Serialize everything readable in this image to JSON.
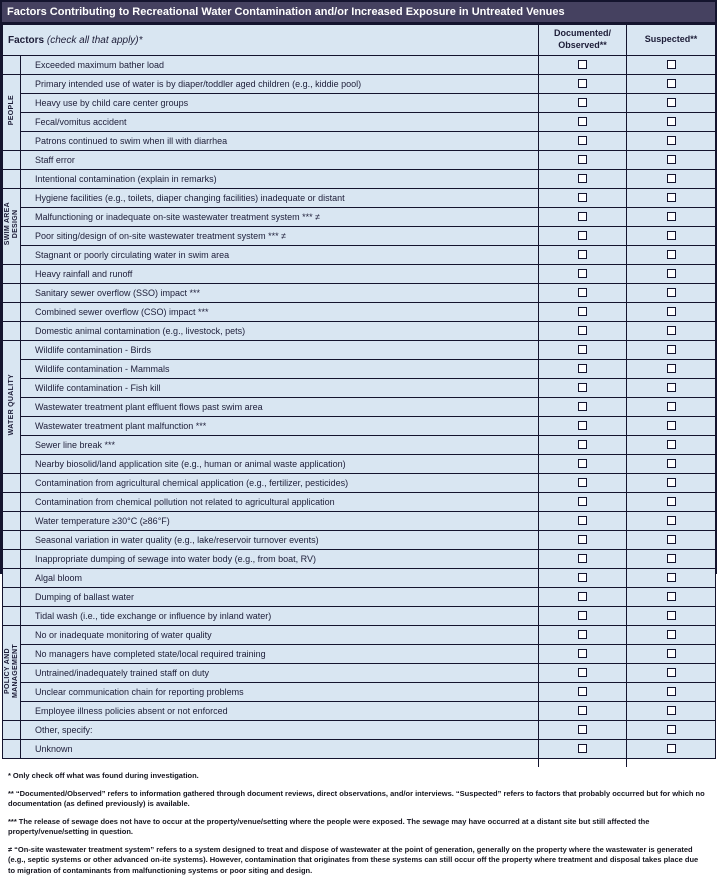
{
  "title": "Factors Contributing to Recreational Water Contamination and/or Increased Exposure in Untreated Venues",
  "header": {
    "factors_bold": "Factors",
    "factors_italic": "(check all that apply)*",
    "documented_line1": "Documented/",
    "documented_line2": "Observed**",
    "suspected": "Suspected**"
  },
  "checkbox_default": "unchecked",
  "groups": [
    {
      "name": "people",
      "lines": [
        "PEOPLE"
      ],
      "start": 1,
      "span": 4
    },
    {
      "name": "swim-area-design",
      "lines": [
        "SWIM AREA",
        "DESIGN"
      ],
      "start": 7,
      "span": 4
    },
    {
      "name": "water-quality",
      "lines": [
        "WATER QUALITY"
      ],
      "start": 15,
      "span": 7
    },
    {
      "name": "policy-and-management",
      "lines": [
        "POLICY AND",
        "MANAGEMENT"
      ],
      "start": 30,
      "span": 5
    }
  ],
  "rows": [
    "Exceeded maximum bather load",
    "Primary intended use of water is by diaper/toddler aged children (e.g., kiddie pool)",
    "Heavy use by child care center groups",
    "Fecal/vomitus accident",
    "Patrons continued to swim when ill with diarrhea",
    "Staff error",
    "Intentional contamination (explain in remarks)",
    "Hygiene facilities (e.g., toilets, diaper changing facilities) inadequate or distant",
    "Malfunctioning or inadequate on-site wastewater treatment system *** ≠",
    "Poor siting/design of on-site wastewater treatment system *** ≠",
    "Stagnant or poorly circulating water in swim area",
    "Heavy rainfall and runoff",
    "Sanitary sewer overflow (SSO) impact ***",
    "Combined sewer overflow (CSO) impact ***",
    "Domestic animal contamination (e.g., livestock, pets)",
    "Wildlife contamination - Birds",
    "Wildlife contamination - Mammals",
    "Wildlife contamination - Fish kill",
    "Wastewater treatment plant effluent flows past swim area",
    "Wastewater treatment plant malfunction ***",
    "Sewer line break ***",
    "Nearby biosolid/land application site (e.g., human or animal waste application)",
    "Contamination from agricultural chemical application (e.g., fertilizer, pesticides)",
    "Contamination from chemical pollution not related to agricultural application",
    "Water temperature ≥30°C (≥86°F)",
    "Seasonal variation in water quality (e.g., lake/reservoir turnover events)",
    "Inappropriate dumping of sewage into water body (e.g., from boat, RV)",
    "Algal bloom",
    "Dumping of ballast water",
    "Tidal wash (i.e., tide exchange or influence by inland water)",
    "No or inadequate monitoring of water quality",
    "No managers have completed state/local required training",
    "Untrained/inadequately trained staff on duty",
    "Unclear communication chain for reporting problems",
    "Employee illness policies absent or not enforced",
    "Other, specify:",
    "Unknown"
  ],
  "footnotes": [
    {
      "marker": "*",
      "text": "Only check off what was found during investigation."
    },
    {
      "marker": "**",
      "text": "“Documented/Observed” refers to information gathered through document reviews, direct observations, and/or interviews. “Suspected” refers to factors that probably occurred but for which no documentation (as defined previously) is available."
    },
    {
      "marker": "***",
      "text": "The release of sewage does not have to occur at the property/venue/setting where the people were exposed. The sewage may have occurred at a distant site but still affected the property/venue/setting in question."
    },
    {
      "marker": "≠",
      "text": "“On-site wastewater treatment system” refers to a system designed to treat and dispose of wastewater at the point of generation, generally on the property where the wastewater is generated (e.g., septic systems or other advanced on-ite systems). However, contamination that originates from these systems can still occur off the property where treatment and disposal takes place due to migration of contaminants from malfunctioning systems or poor siting and design."
    }
  ],
  "colors": {
    "title_bar": "#454160",
    "row_background": "#d9e6f2",
    "border": "#14142e",
    "text": "#1d1d38"
  }
}
